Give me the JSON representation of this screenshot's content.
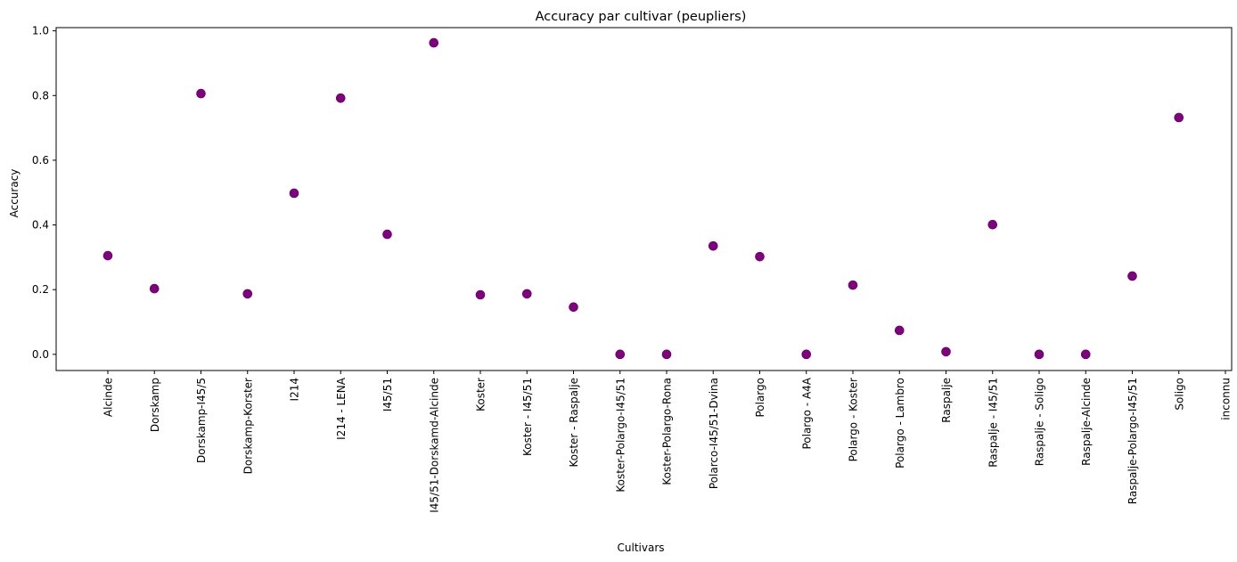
{
  "chart_data": {
    "type": "scatter",
    "title": "Accuracy par cultivar (peupliers)",
    "xlabel": "Cultivars",
    "ylabel": "Accuracy",
    "ylim": [
      -0.05,
      1.01
    ],
    "yticks": [
      "0.0",
      "0.2",
      "0.4",
      "0.6",
      "0.8",
      "1.0"
    ],
    "grid": false,
    "marker_color": "#800080",
    "categories": [
      "Alcinde",
      "Dorskamp",
      "Dorskamp-I45/5",
      "Dorskamp-Korster",
      "I214",
      "I214 - LENA",
      "I45/51",
      "I45/51-Dorskamd-Alcinde",
      "Koster",
      "Koster - I45/51",
      "Koster - Raspalje",
      "Koster-Polargo-I45/51",
      "Koster-Polargo-Rona",
      "Polarco-I45/51-Dvina",
      "Polargo",
      "Polargo - A4A",
      "Polargo - Koster",
      "Polargo - Lambro",
      "Raspalje",
      "Raspalje - I45/51",
      "Raspalje - Soligo",
      "Raspalje-Alcinde",
      "Raspalje-Polargo-I45/51",
      "Soligo",
      "inconnu"
    ],
    "values": [
      0.305,
      0.203,
      0.806,
      0.187,
      0.498,
      0.792,
      0.371,
      0.963,
      0.184,
      0.187,
      0.146,
      0.0,
      0.0,
      0.335,
      0.302,
      0.0,
      0.214,
      0.074,
      0.008,
      0.401,
      0.0,
      0.0,
      0.242,
      0.732,
      null
    ]
  }
}
